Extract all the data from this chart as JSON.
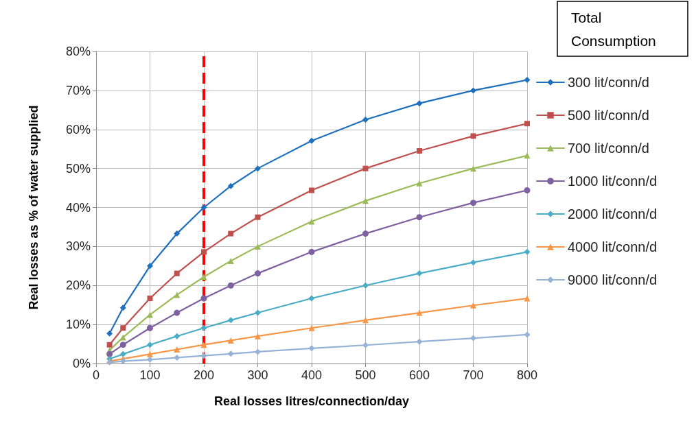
{
  "chart_data": {
    "type": "line",
    "xlabel": "Real losses litres/connection/day",
    "ylabel": "Real losses as % of water supplied",
    "legend_title": "Total Consumption",
    "x": [
      25,
      50,
      100,
      150,
      200,
      250,
      300,
      400,
      500,
      600,
      700,
      800
    ],
    "series": [
      {
        "name": "300 lit/conn/d",
        "color": "#1f6fbf",
        "marker": "diamond",
        "values": [
          7.7,
          14.3,
          25,
          33.3,
          40,
          45.5,
          50,
          57.1,
          62.5,
          66.7,
          70,
          72.7
        ]
      },
      {
        "name": "500 lit/conn/d",
        "color": "#c0504d",
        "marker": "square",
        "values": [
          4.8,
          9.1,
          16.7,
          23.1,
          28.6,
          33.3,
          37.5,
          44.4,
          50,
          54.5,
          58.3,
          61.5
        ]
      },
      {
        "name": "700 lit/conn/d",
        "color": "#9bbb59",
        "marker": "triangle",
        "values": [
          3.4,
          6.7,
          12.5,
          17.6,
          22.2,
          26.3,
          30,
          36.4,
          41.7,
          46.2,
          50,
          53.3
        ]
      },
      {
        "name": "1000 lit/conn/d",
        "color": "#7f60a0",
        "marker": "circle",
        "values": [
          2.4,
          4.8,
          9.1,
          13,
          16.7,
          20,
          23.1,
          28.6,
          33.3,
          37.5,
          41.2,
          44.4
        ]
      },
      {
        "name": "2000 lit/conn/d",
        "color": "#4bacc6",
        "marker": "diamond",
        "values": [
          1.2,
          2.4,
          4.8,
          7,
          9.1,
          11.1,
          13,
          16.7,
          20,
          23.1,
          25.9,
          28.6
        ]
      },
      {
        "name": "4000 lit/conn/d",
        "color": "#f79646",
        "marker": "triangle",
        "values": [
          0.6,
          1.2,
          2.4,
          3.6,
          4.8,
          5.9,
          7,
          9.1,
          11.1,
          13,
          14.9,
          16.7
        ]
      },
      {
        "name": "9000 lit/conn/d",
        "color": "#95b3d7",
        "marker": "diamond",
        "values": [
          0.3,
          0.6,
          1,
          1.5,
          2,
          2.5,
          3,
          3.9,
          4.7,
          5.6,
          6.5,
          7.4
        ]
      }
    ],
    "xlim": [
      0,
      800
    ],
    "xticks": [
      0,
      100,
      200,
      300,
      400,
      500,
      600,
      700,
      800
    ],
    "ylim": [
      0,
      80
    ],
    "yticks": [
      {
        "value": 0,
        "label": "0%"
      },
      {
        "value": 10,
        "label": "10%"
      },
      {
        "value": 20,
        "label": "20%"
      },
      {
        "value": 30,
        "label": "30%"
      },
      {
        "value": 40,
        "label": "40%"
      },
      {
        "value": 50,
        "label": "50%"
      },
      {
        "value": 60,
        "label": "60%"
      },
      {
        "value": 70,
        "label": "70%"
      },
      {
        "value": 80,
        "label": "80%"
      }
    ],
    "ref_lines": [
      {
        "axis": "x",
        "value": 200,
        "color": "#ff0000",
        "line_style": "dashed"
      }
    ],
    "grid": true,
    "legend": "right",
    "line_style": "solid"
  }
}
